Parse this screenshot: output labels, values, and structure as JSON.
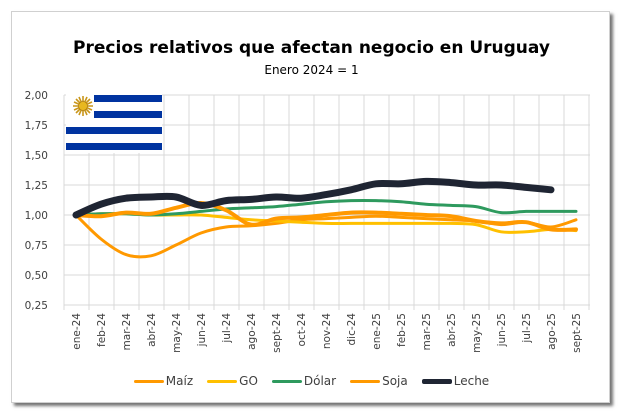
{
  "chart_data": {
    "type": "line",
    "title": "Precios relativos que afectan negocio en Uruguay",
    "subtitle": "Enero 2024 = 1",
    "xlabel": "",
    "ylabel": "",
    "ylim": [
      0.25,
      2.0
    ],
    "yticks": [
      "2,00",
      "1,75",
      "1,50",
      "1,25",
      "1,00",
      "0,75",
      "0,50",
      "0,25"
    ],
    "ytick_values": [
      2.0,
      1.75,
      1.5,
      1.25,
      1.0,
      0.75,
      0.5,
      0.25
    ],
    "grid": true,
    "legend_position": "bottom",
    "categories": [
      "ene-24",
      "feb-24",
      "mar-24",
      "abr-24",
      "may-24",
      "jun-24",
      "jul-24",
      "ago-24",
      "sept-24",
      "oct-24",
      "nov-24",
      "dic-24",
      "ene-25",
      "feb-25",
      "mar-25",
      "abr-25",
      "may-25",
      "jun-25",
      "jul-25",
      "ago-25",
      "sept-25"
    ],
    "series": [
      {
        "name": "Maíz",
        "color": "#FF9900",
        "width": 3,
        "values": [
          1.0,
          0.8,
          0.67,
          0.66,
          0.75,
          0.85,
          0.9,
          0.91,
          0.93,
          0.96,
          0.97,
          0.98,
          0.99,
          0.98,
          0.97,
          0.96,
          0.95,
          0.92,
          0.94,
          0.9,
          0.96
        ]
      },
      {
        "name": "GO",
        "color": "#FFC000",
        "width": 3,
        "values": [
          1.0,
          1.01,
          1.01,
          1.0,
          1.0,
          1.0,
          0.98,
          0.96,
          0.95,
          0.94,
          0.93,
          0.93,
          0.93,
          0.93,
          0.93,
          0.93,
          0.92,
          0.86,
          0.86,
          0.88,
          0.87
        ]
      },
      {
        "name": "Dólar",
        "color": "#2E9A5E",
        "width": 3,
        "values": [
          1.0,
          1.01,
          1.01,
          1.0,
          1.01,
          1.03,
          1.05,
          1.06,
          1.07,
          1.09,
          1.11,
          1.12,
          1.12,
          1.11,
          1.09,
          1.08,
          1.07,
          1.02,
          1.03,
          1.03,
          1.03
        ]
      },
      {
        "name": "Soja",
        "color": "#FF9900",
        "width": 4,
        "values": [
          1.0,
          0.99,
          1.02,
          1.01,
          1.06,
          1.1,
          1.04,
          0.92,
          0.97,
          0.98,
          1.0,
          1.02,
          1.02,
          1.01,
          1.0,
          0.99,
          0.95,
          0.93,
          0.94,
          0.88,
          0.88
        ]
      },
      {
        "name": "Leche",
        "color": "#1F2533",
        "width": 7,
        "values": [
          1.0,
          1.09,
          1.14,
          1.15,
          1.15,
          1.08,
          1.12,
          1.13,
          1.15,
          1.14,
          1.17,
          1.21,
          1.26,
          1.26,
          1.28,
          1.27,
          1.25,
          1.25,
          1.23,
          1.21,
          null
        ]
      }
    ]
  },
  "decoration": {
    "flag_icon": "uruguay-flag",
    "flag_colors": {
      "blue": "#0033A0",
      "white": "#FFFFFF",
      "sun": "#D4A017"
    }
  }
}
